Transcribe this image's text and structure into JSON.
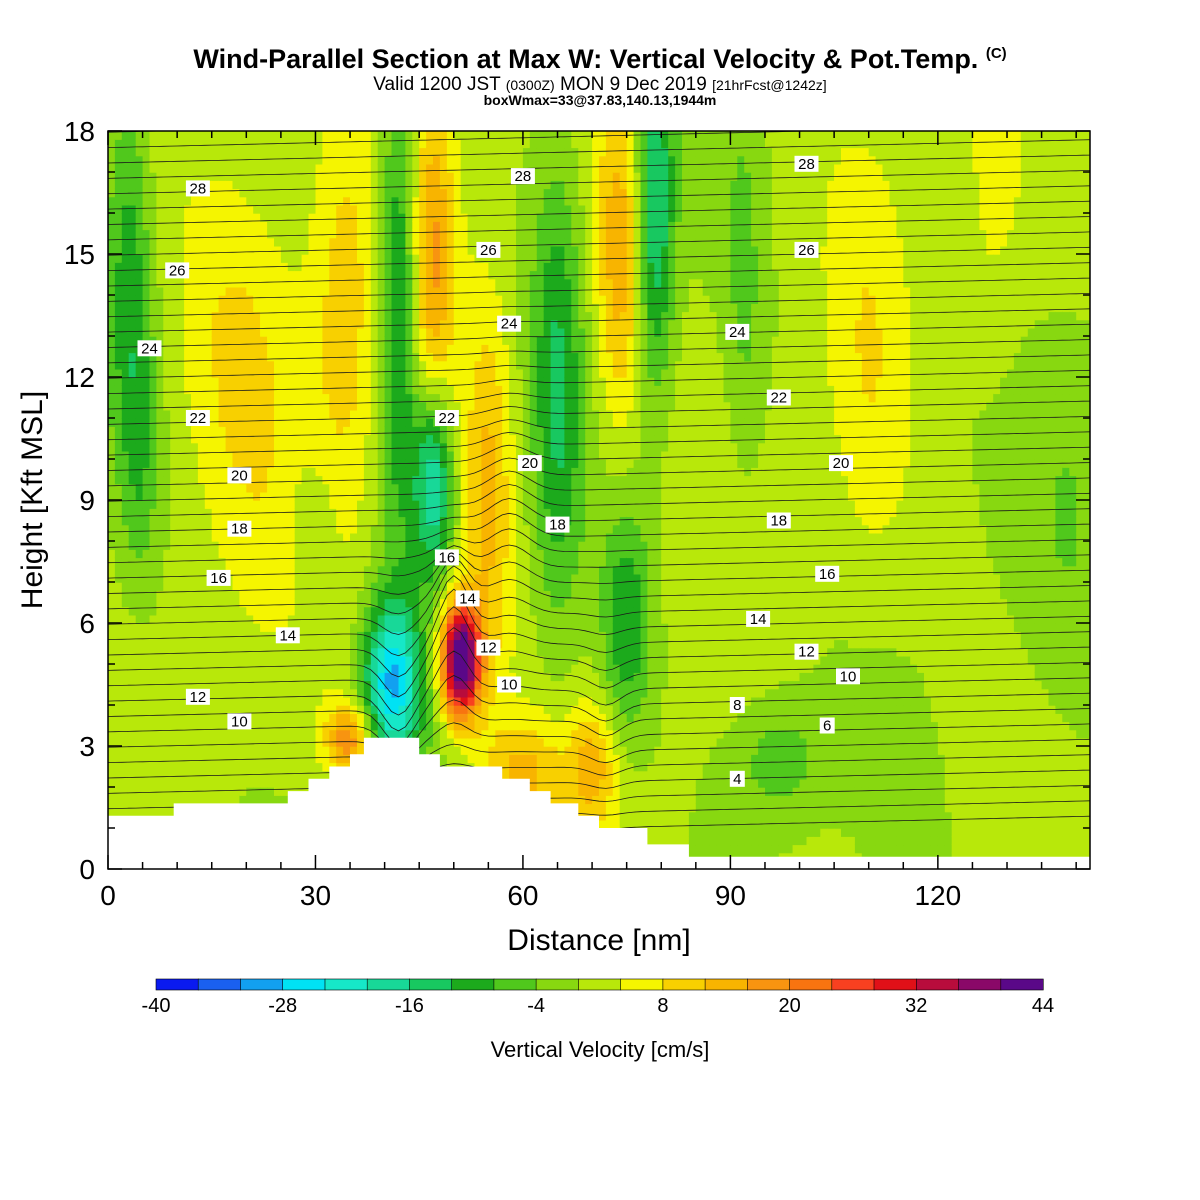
{
  "header": {
    "title": "Wind-Parallel Section at Max W: Vertical Velocity & Pot.Temp.",
    "title_mark": "(C)",
    "valid_prefix": "Valid 1200 JST",
    "valid_utc": "(0300Z)",
    "valid_date": "MON 9 Dec 2019",
    "fcst": "[21hrFcst@1242z]",
    "box": "boxWmax=33@37.83,140.13,1944m"
  },
  "chart_data": {
    "type": "heatmap",
    "xlabel": "Distance [nm]",
    "ylabel": "Height [Kft MSL]",
    "xlim": [
      0,
      142
    ],
    "ylim": [
      0,
      18
    ],
    "x_ticks": [
      "0",
      "30",
      "60",
      "90",
      "120"
    ],
    "y_ticks": [
      "0",
      "3",
      "6",
      "9",
      "12",
      "15",
      "18"
    ],
    "colorbar": {
      "label": "Vertical Velocity [cm/s]",
      "tick_labels": [
        "-40",
        "-28",
        "-16",
        "-4",
        "8",
        "20",
        "32",
        "44"
      ],
      "levels": [
        -40,
        -36,
        -32,
        -28,
        -24,
        -20,
        -16,
        -12,
        -8,
        -4,
        0,
        4,
        8,
        12,
        16,
        20,
        24,
        28,
        32,
        36,
        40,
        44
      ],
      "colors": [
        "#0a1af0",
        "#1a60f0",
        "#12a0f0",
        "#00e2f4",
        "#16e8c8",
        "#18d898",
        "#18c860",
        "#1caa1c",
        "#50c81c",
        "#88d810",
        "#b8e80a",
        "#f5f500",
        "#f8d000",
        "#f8b400",
        "#f89410",
        "#f87410",
        "#f84020",
        "#e01018",
        "#b80c3c",
        "#8a0868",
        "#5a0888"
      ]
    },
    "terrain_kft": [
      [
        0,
        1.3
      ],
      [
        9.5,
        1.3
      ],
      [
        9.5,
        1.6
      ],
      [
        26,
        1.6
      ],
      [
        26,
        1.9
      ],
      [
        29,
        1.9
      ],
      [
        29,
        2.2
      ],
      [
        32,
        2.2
      ],
      [
        32,
        2.5
      ],
      [
        35,
        2.5
      ],
      [
        35,
        2.8
      ],
      [
        37,
        2.8
      ],
      [
        37,
        3.2
      ],
      [
        45,
        3.2
      ],
      [
        45,
        2.8
      ],
      [
        48,
        2.8
      ],
      [
        48,
        2.5
      ],
      [
        57,
        2.5
      ],
      [
        57,
        2.2
      ],
      [
        61,
        2.2
      ],
      [
        61,
        1.9
      ],
      [
        64,
        1.9
      ],
      [
        64,
        1.6
      ],
      [
        68,
        1.6
      ],
      [
        68,
        1.3
      ],
      [
        71,
        1.3
      ],
      [
        71,
        1.0
      ],
      [
        78,
        1.0
      ],
      [
        78,
        0.6
      ],
      [
        84,
        0.6
      ],
      [
        84,
        0.3
      ],
      [
        142,
        0.3
      ]
    ],
    "series": [
      {
        "name": "Vertical Velocity [cm/s]",
        "features": [
          {
            "x": 3,
            "y": 14.5,
            "sx": 2.0,
            "sy": 4.0,
            "w": -9
          },
          {
            "x": 5,
            "y": 10.5,
            "sx": 1.8,
            "sy": 2.5,
            "w": -6
          },
          {
            "x": 15,
            "y": 13.5,
            "sx": 5.0,
            "sy": 3.5,
            "w": 4
          },
          {
            "x": 22,
            "y": 12.0,
            "sx": 5.0,
            "sy": 4.0,
            "w": 5
          },
          {
            "x": 34,
            "y": 13.0,
            "sx": 3.5,
            "sy": 4.0,
            "w": 9
          },
          {
            "x": 30,
            "y": 8.5,
            "sx": 3.0,
            "sy": 1.5,
            "w": -4
          },
          {
            "x": 42,
            "y": 14.0,
            "sx": 2.0,
            "sy": 4.0,
            "w": -16
          },
          {
            "x": 47,
            "y": 9.5,
            "sx": 2.0,
            "sy": 1.6,
            "w": -22
          },
          {
            "x": 41,
            "y": 4.5,
            "sx": 3.0,
            "sy": 1.4,
            "w": -28
          },
          {
            "x": 47,
            "y": 15.0,
            "sx": 2.2,
            "sy": 3.0,
            "w": 14
          },
          {
            "x": 55,
            "y": 9.0,
            "sx": 2.5,
            "sy": 3.5,
            "w": 12
          },
          {
            "x": 51,
            "y": 5.1,
            "sx": 2.0,
            "sy": 1.0,
            "w": 48
          },
          {
            "x": 35,
            "y": 3.2,
            "sx": 2.5,
            "sy": 0.6,
            "w": 18
          },
          {
            "x": 60,
            "y": 2.3,
            "sx": 4.0,
            "sy": 1.0,
            "w": 12
          },
          {
            "x": 70,
            "y": 2.5,
            "sx": 2.5,
            "sy": 1.0,
            "w": 12
          },
          {
            "x": 65,
            "y": 11.5,
            "sx": 2.5,
            "sy": 4.0,
            "w": -12
          },
          {
            "x": 75,
            "y": 6.0,
            "sx": 2.5,
            "sy": 2.0,
            "w": -12
          },
          {
            "x": 74,
            "y": 15.0,
            "sx": 2.5,
            "sy": 3.0,
            "w": 14
          },
          {
            "x": 79,
            "y": 16.0,
            "sx": 2.0,
            "sy": 3.0,
            "w": -18
          },
          {
            "x": 92,
            "y": 14.0,
            "sx": 2.0,
            "sy": 3.5,
            "w": -5
          },
          {
            "x": 110,
            "y": 12.0,
            "sx": 4.0,
            "sy": 4.0,
            "w": 5
          },
          {
            "x": 128,
            "y": 16.0,
            "sx": 3.0,
            "sy": 3.0,
            "w": 4
          },
          {
            "x": 140,
            "y": 9.0,
            "sx": 4.0,
            "sy": 3.0,
            "w": -4
          },
          {
            "x": 97,
            "y": 2.7,
            "sx": 5.0,
            "sy": 1.2,
            "w": -8
          }
        ]
      },
      {
        "name": "Pot.Temp.",
        "labels": [
          {
            "text": "28",
            "x": 13,
            "y": 16.6
          },
          {
            "text": "26",
            "x": 10,
            "y": 14.6
          },
          {
            "text": "24",
            "x": 6,
            "y": 12.7
          },
          {
            "text": "22",
            "x": 13,
            "y": 11.0
          },
          {
            "text": "20",
            "x": 19,
            "y": 9.6
          },
          {
            "text": "18",
            "x": 19,
            "y": 8.3
          },
          {
            "text": "16",
            "x": 16,
            "y": 7.1
          },
          {
            "text": "14",
            "x": 26,
            "y": 5.7
          },
          {
            "text": "12",
            "x": 13,
            "y": 4.2
          },
          {
            "text": "10",
            "x": 19,
            "y": 3.6
          },
          {
            "text": "28",
            "x": 60,
            "y": 16.9
          },
          {
            "text": "26",
            "x": 55,
            "y": 15.1
          },
          {
            "text": "24",
            "x": 58,
            "y": 13.3
          },
          {
            "text": "22",
            "x": 49,
            "y": 11.0
          },
          {
            "text": "20",
            "x": 61,
            "y": 9.9
          },
          {
            "text": "18",
            "x": 65,
            "y": 8.4
          },
          {
            "text": "16",
            "x": 49,
            "y": 7.6
          },
          {
            "text": "14",
            "x": 52,
            "y": 6.6
          },
          {
            "text": "12",
            "x": 55,
            "y": 5.4
          },
          {
            "text": "10",
            "x": 58,
            "y": 4.5
          },
          {
            "text": "28",
            "x": 101,
            "y": 17.2
          },
          {
            "text": "26",
            "x": 101,
            "y": 15.1
          },
          {
            "text": "24",
            "x": 91,
            "y": 13.1
          },
          {
            "text": "22",
            "x": 97,
            "y": 11.5
          },
          {
            "text": "20",
            "x": 106,
            "y": 9.9
          },
          {
            "text": "18",
            "x": 97,
            "y": 8.5
          },
          {
            "text": "16",
            "x": 104,
            "y": 7.2
          },
          {
            "text": "14",
            "x": 94,
            "y": 6.1
          },
          {
            "text": "12",
            "x": 101,
            "y": 5.3
          },
          {
            "text": "10",
            "x": 107,
            "y": 4.7
          },
          {
            "text": "8",
            "x": 91,
            "y": 4.0
          },
          {
            "text": "6",
            "x": 104,
            "y": 3.5
          },
          {
            "text": "4",
            "x": 91,
            "y": 2.2
          }
        ]
      }
    ]
  }
}
